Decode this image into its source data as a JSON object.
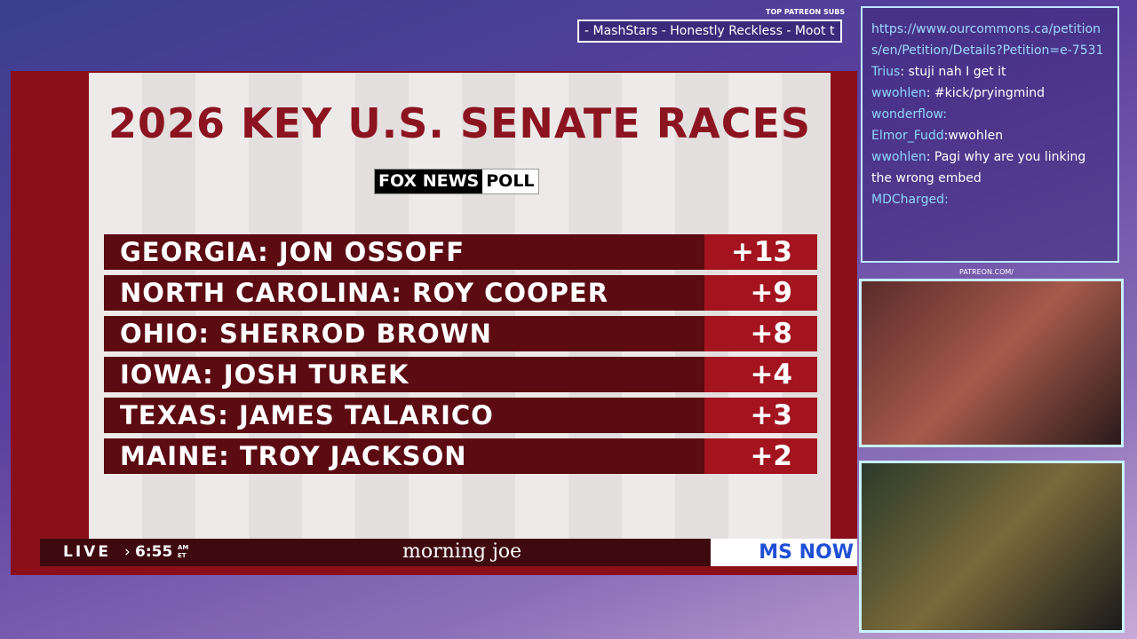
{
  "ticker": {
    "label": "TOP PATREON SUBS",
    "text": "- MashStars - Honestly Reckless - Moot t"
  },
  "graphic": {
    "title": "2026 KEY U.S. SENATE RACES",
    "source_brand": "FOX NEWS",
    "source_poll": "POLL",
    "rows": [
      {
        "race": "GEORGIA: JON OSSOFF",
        "margin": "+13"
      },
      {
        "race": "NORTH CAROLINA: ROY COOPER",
        "margin": "+9"
      },
      {
        "race": "OHIO: SHERROD BROWN",
        "margin": "+8"
      },
      {
        "race": "IOWA: JOSH TUREK",
        "margin": "+4"
      },
      {
        "race": "TEXAS: JAMES TALARICO",
        "margin": "+3"
      },
      {
        "race": "MAINE: TROY JACKSON",
        "margin": "+2"
      }
    ]
  },
  "lower_third": {
    "live": "LIVE",
    "time": "6:55",
    "ampm": "AM",
    "tz": "ET",
    "show": "morning joe",
    "network": "MS NOW"
  },
  "chat": {
    "link": "https://www.ourcommons.ca/petitions/en/Petition/Details?Petition=e-7531",
    "messages": [
      {
        "user": "Trius",
        "text": ": stuji nah I get it"
      },
      {
        "user": "wwohlen",
        "text": ": #kick/pryingmind"
      },
      {
        "user": "wonderflow:"
      },
      {
        "user": "Elmor_Fudd",
        "text": ":wwohlen"
      },
      {
        "user": "wwohlen",
        "text": ": Pagi why are you linking the wrong embed"
      },
      {
        "user": "MDCharged:"
      }
    ]
  },
  "overlay": {
    "patreon": "PATREON.COM/"
  }
}
